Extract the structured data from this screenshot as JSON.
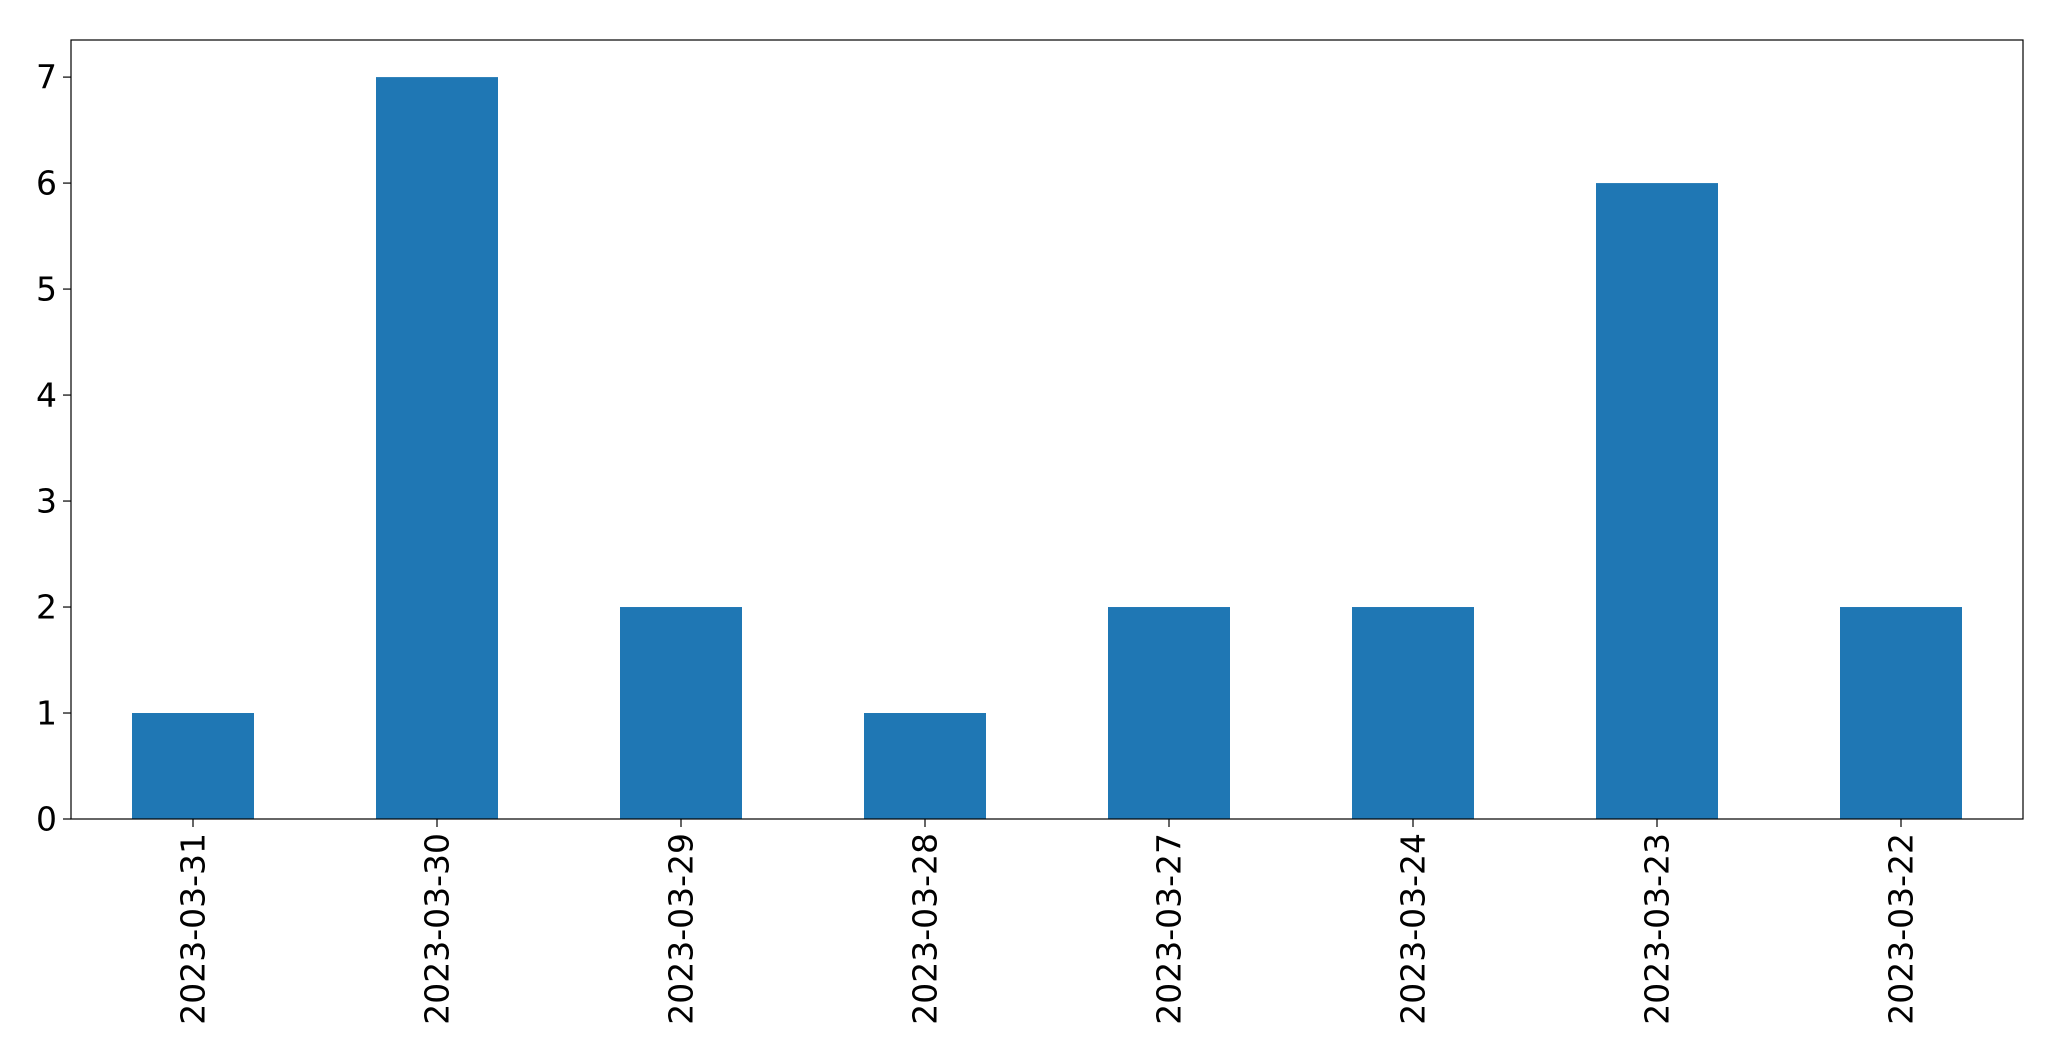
{
  "chart_data": {
    "type": "bar",
    "categories": [
      "2023-03-31",
      "2023-03-30",
      "2023-03-29",
      "2023-03-28",
      "2023-03-27",
      "2023-03-24",
      "2023-03-23",
      "2023-03-22"
    ],
    "values": [
      1,
      7,
      2,
      1,
      2,
      2,
      6,
      2
    ],
    "title": "",
    "xlabel": "",
    "ylabel": "",
    "ylim": [
      0,
      7.35
    ],
    "yticks": [
      0,
      1,
      2,
      3,
      4,
      5,
      6,
      7
    ],
    "grid": false,
    "bar_color": "#1f77b4"
  }
}
